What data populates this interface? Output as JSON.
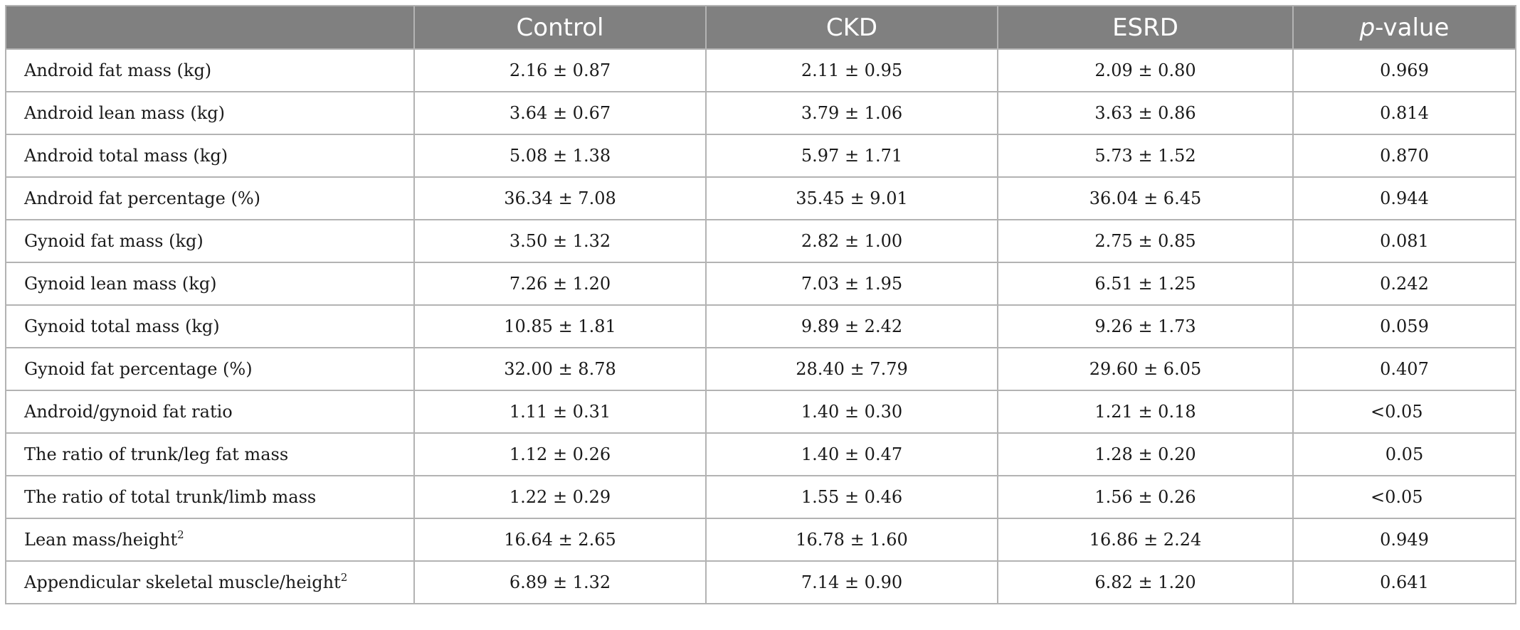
{
  "table": {
    "headers": {
      "label": "",
      "control": "Control",
      "ckd": "CKD",
      "esrd": "ESRD",
      "p_italic": "p",
      "p_rest": "-value"
    },
    "rows": [
      {
        "label": "Android fat mass (kg)",
        "sup": "",
        "control": "2.16 ± 0.87",
        "ckd": "2.11 ± 0.95",
        "esrd": "2.09 ± 0.80",
        "p": "0.969"
      },
      {
        "label": "Android lean mass (kg)",
        "sup": "",
        "control": "3.64 ± 0.67",
        "ckd": "3.79 ± 1.06",
        "esrd": "3.63 ± 0.86",
        "p": "0.814"
      },
      {
        "label": "Android total mass (kg)",
        "sup": "",
        "control": "5.08 ± 1.38",
        "ckd": "5.97 ± 1.71",
        "esrd": "5.73 ± 1.52",
        "p": "0.870"
      },
      {
        "label": "Android fat percentage (%)",
        "sup": "",
        "control": "36.34 ± 7.08",
        "ckd": "35.45 ± 9.01",
        "esrd": "36.04 ± 6.45",
        "p": "0.944"
      },
      {
        "label": "Gynoid fat mass (kg)",
        "sup": "",
        "control": "3.50 ± 1.32",
        "ckd": "2.82 ± 1.00",
        "esrd": "2.75 ± 0.85",
        "p": "0.081"
      },
      {
        "label": "Gynoid lean mass (kg)",
        "sup": "",
        "control": "7.26 ± 1.20",
        "ckd": "7.03 ± 1.95",
        "esrd": "6.51 ± 1.25",
        "p": "0.242"
      },
      {
        "label": "Gynoid total mass (kg)",
        "sup": "",
        "control": "10.85 ± 1.81",
        "ckd": "9.89 ± 2.42",
        "esrd": "9.26 ± 1.73",
        "p": "0.059"
      },
      {
        "label": "Gynoid fat percentage (%)",
        "sup": "",
        "control": "32.00 ± 8.78",
        "ckd": "28.40 ± 7.79",
        "esrd": "29.60 ± 6.05",
        "p": "0.407"
      },
      {
        "label": "Android/gynoid fat ratio",
        "sup": "",
        "control": "1.11 ± 0.31",
        "ckd": "1.40 ± 0.30",
        "esrd": "1.21 ± 0.18",
        "p": "<0.05"
      },
      {
        "label": "The ratio of trunk/leg fat mass",
        "sup": "",
        "control": "1.12 ± 0.26",
        "ckd": "1.40 ± 0.47",
        "esrd": "1.28 ± 0.20",
        "p": "0.05"
      },
      {
        "label": "The ratio of total trunk/limb mass",
        "sup": "",
        "control": "1.22 ± 0.29",
        "ckd": "1.55 ± 0.46",
        "esrd": "1.56 ± 0.26",
        "p": "<0.05"
      },
      {
        "label": "Lean mass/height",
        "sup": "2",
        "control": "16.64 ± 2.65",
        "ckd": "16.78 ± 1.60",
        "esrd": "16.86 ± 2.24",
        "p": "0.949"
      },
      {
        "label": "Appendicular skeletal muscle/height",
        "sup": "2",
        "control": "6.89 ± 1.32",
        "ckd": "7.14 ± 0.90",
        "esrd": "6.82 ± 1.20",
        "p": "0.641"
      }
    ]
  }
}
